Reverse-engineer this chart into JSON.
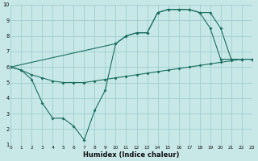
{
  "xlabel": "Humidex (Indice chaleur)",
  "bg_color": "#c8e8e8",
  "grid_color": "#9ecece",
  "line_color": "#1a6e60",
  "xlim": [
    0,
    23
  ],
  "ylim": [
    1,
    10
  ],
  "xticks": [
    0,
    1,
    2,
    3,
    4,
    5,
    6,
    7,
    8,
    9,
    10,
    11,
    12,
    13,
    14,
    15,
    16,
    17,
    18,
    19,
    20,
    21,
    22,
    23
  ],
  "yticks": [
    1,
    2,
    3,
    4,
    5,
    6,
    7,
    8,
    9,
    10
  ],
  "line_zigzag": {
    "x": [
      0,
      1,
      2,
      3,
      4,
      5,
      6,
      7,
      8,
      9,
      10,
      11,
      12,
      13,
      14,
      15,
      16,
      17,
      18,
      19,
      20,
      21,
      22,
      23
    ],
    "y": [
      6.0,
      5.8,
      5.2,
      3.7,
      2.7,
      2.7,
      2.2,
      1.3,
      3.2,
      4.5,
      7.5,
      8.0,
      8.2,
      8.2,
      9.5,
      9.7,
      9.7,
      9.7,
      9.5,
      9.5,
      8.5,
      6.5,
      6.5,
      6.5
    ]
  },
  "line_upper": {
    "x": [
      0,
      10,
      11,
      12,
      13,
      14,
      15,
      16,
      17,
      18,
      19,
      20,
      21,
      22,
      23
    ],
    "y": [
      6.0,
      7.5,
      8.0,
      8.2,
      8.2,
      9.5,
      9.7,
      9.7,
      9.7,
      9.5,
      8.5,
      6.5,
      6.5,
      6.5,
      6.5
    ]
  },
  "line_lower": {
    "x": [
      0,
      1,
      2,
      3,
      4,
      5,
      6,
      7,
      8,
      9,
      10,
      11,
      12,
      13,
      14,
      15,
      16,
      17,
      18,
      19,
      20,
      21,
      22,
      23
    ],
    "y": [
      6.0,
      5.8,
      5.5,
      5.3,
      5.1,
      5.0,
      5.0,
      5.0,
      5.1,
      5.2,
      5.3,
      5.4,
      5.5,
      5.6,
      5.7,
      5.8,
      5.9,
      6.0,
      6.1,
      6.2,
      6.3,
      6.4,
      6.5,
      6.5
    ]
  }
}
